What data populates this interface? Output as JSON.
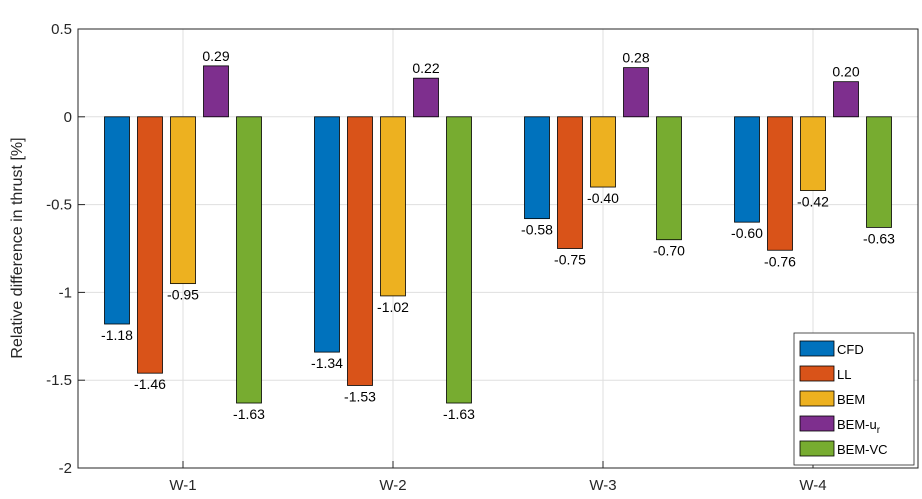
{
  "chart_data": {
    "type": "bar",
    "title": "",
    "xlabel": "",
    "ylabel": "Relative difference in thrust [%]",
    "ylim": [
      -2,
      0.5
    ],
    "yticks": [
      -2,
      -1.5,
      -1,
      -0.5,
      0,
      0.5
    ],
    "ytick_labels": [
      "-2",
      "-1.5",
      "-1",
      "-0.5",
      "0",
      "0.5"
    ],
    "grid": true,
    "legend_position": "bottom-right",
    "categories": [
      "W-1",
      "W-2",
      "W-3",
      "W-4"
    ],
    "series": [
      {
        "name": "CFD",
        "color": "#0072BD",
        "values": [
          -1.18,
          -1.34,
          -0.58,
          -0.6
        ],
        "labels": [
          "-1.18",
          "-1.34",
          "-0.58",
          "-0.60"
        ]
      },
      {
        "name": "LL",
        "color": "#D95319",
        "values": [
          -1.46,
          -1.53,
          -0.75,
          -0.76
        ],
        "labels": [
          "-1.46",
          "-1.53",
          "-0.75",
          "-0.76"
        ]
      },
      {
        "name": "BEM",
        "color": "#EDB120",
        "values": [
          -0.95,
          -1.02,
          -0.4,
          -0.42
        ],
        "labels": [
          "-0.95",
          "-1.02",
          "-0.40",
          "-0.42"
        ]
      },
      {
        "name": "BEM-u",
        "name_subscript": "r",
        "color": "#7E2F8E",
        "values": [
          0.29,
          0.22,
          0.28,
          0.2
        ],
        "labels": [
          "0.29",
          "0.22",
          "0.28",
          "0.20"
        ]
      },
      {
        "name": "BEM-VC",
        "color": "#77AC30",
        "values": [
          -1.63,
          -1.63,
          -0.7,
          -0.63
        ],
        "labels": [
          "-1.63",
          "-1.63",
          "-0.70",
          "-0.63"
        ]
      }
    ]
  }
}
